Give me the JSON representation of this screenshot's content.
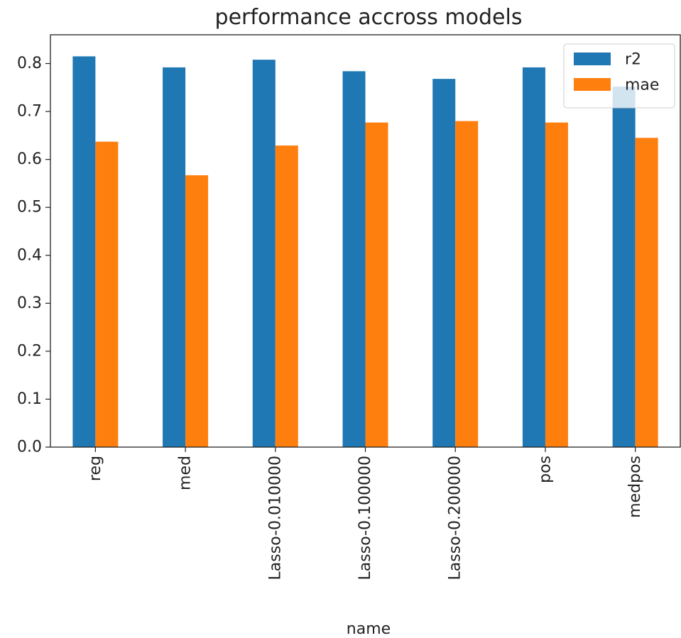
{
  "chart_data": {
    "type": "bar",
    "title": "performance accross models",
    "xlabel": "name",
    "ylabel": "",
    "categories": [
      "reg",
      "med",
      "Lasso-0.010000",
      "Lasso-0.100000",
      "Lasso-0.200000",
      "pos",
      "medpos"
    ],
    "series": [
      {
        "name": "r2",
        "color": "#1f77b4",
        "values": [
          0.815,
          0.792,
          0.808,
          0.784,
          0.768,
          0.792,
          0.752
        ]
      },
      {
        "name": "mae",
        "color": "#ff7f0e",
        "values": [
          0.637,
          0.567,
          0.629,
          0.677,
          0.68,
          0.677,
          0.645
        ]
      }
    ],
    "ylim": [
      0,
      0.86
    ],
    "yticks": [
      "0.0",
      "0.1",
      "0.2",
      "0.3",
      "0.4",
      "0.5",
      "0.6",
      "0.7",
      "0.8"
    ],
    "legend": "top-right",
    "grid": false
  }
}
